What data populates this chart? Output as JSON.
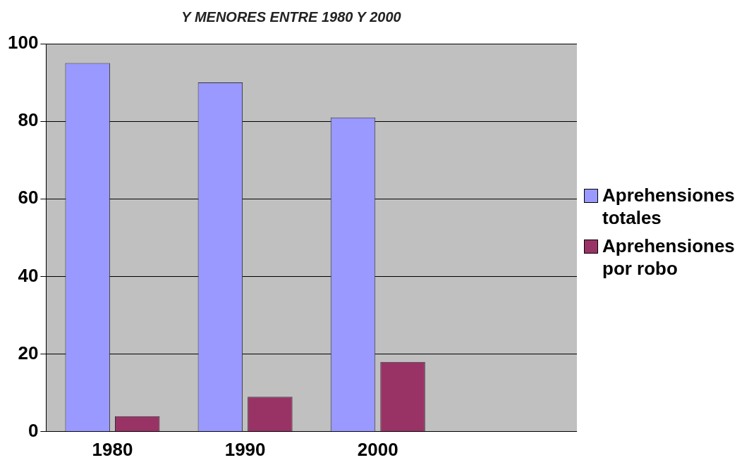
{
  "chart_data": {
    "type": "bar",
    "title": "Y MENORES ENTRE 1980 Y 2000",
    "categories": [
      "1980",
      "1990",
      "2000",
      null
    ],
    "series": [
      {
        "name": "Aprehensiones totales",
        "color": "#9999ff",
        "values": [
          95,
          90,
          81,
          null
        ]
      },
      {
        "name": "Aprehensiones por robo",
        "color": "#993366",
        "values": [
          4,
          9,
          18,
          null
        ]
      }
    ],
    "ylim": [
      0,
      100
    ],
    "yticks": [
      0,
      20,
      40,
      60,
      80,
      100
    ],
    "grid": "y",
    "legend": "right"
  }
}
